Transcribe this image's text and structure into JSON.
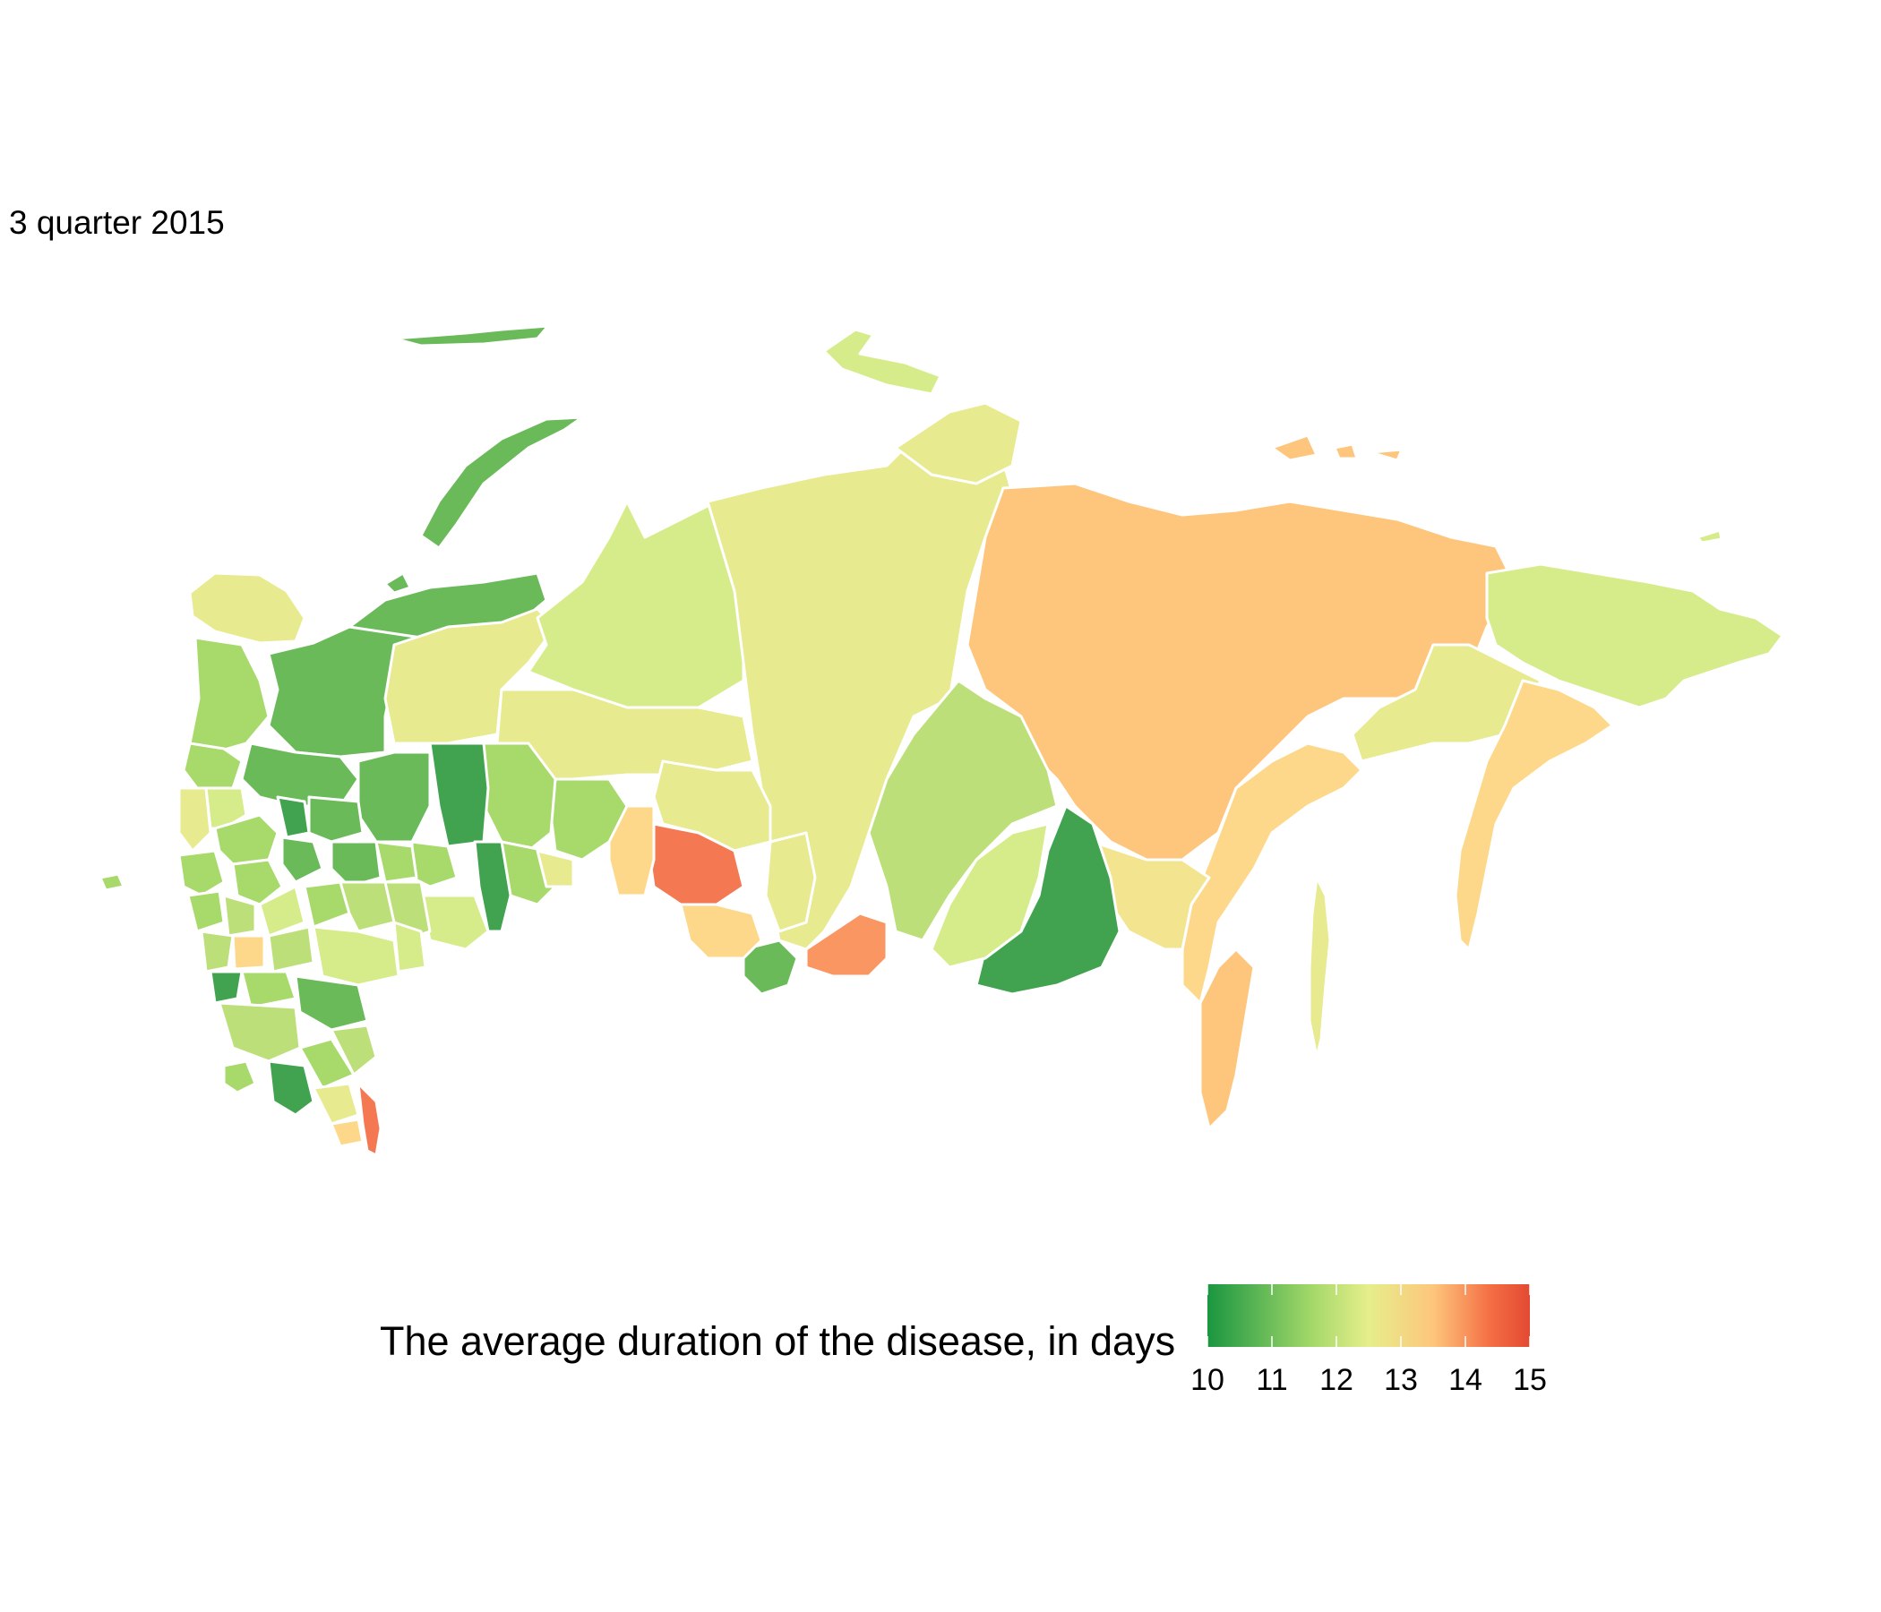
{
  "title": "3 quarter 2015",
  "legend": {
    "title": "The average duration of the disease, in days",
    "min": 10,
    "max": 15,
    "ticks": [
      "10",
      "11",
      "12",
      "13",
      "14",
      "15"
    ],
    "colors": [
      "#1a9641",
      "#a6d96a",
      "#e6ee8b",
      "#fdc67c",
      "#f46d43",
      "#e34a33"
    ]
  },
  "palette": {
    "dark_green": "#41a350",
    "green": "#6aba5a",
    "light_green": "#a8d96b",
    "yellow_green": "#d6ec8a",
    "pale_yellow": "#e7ea8e",
    "light_orange": "#fdd88a",
    "orange": "#fdc67c",
    "dark_orange": "#f99662",
    "red_orange": "#f47852"
  }
}
